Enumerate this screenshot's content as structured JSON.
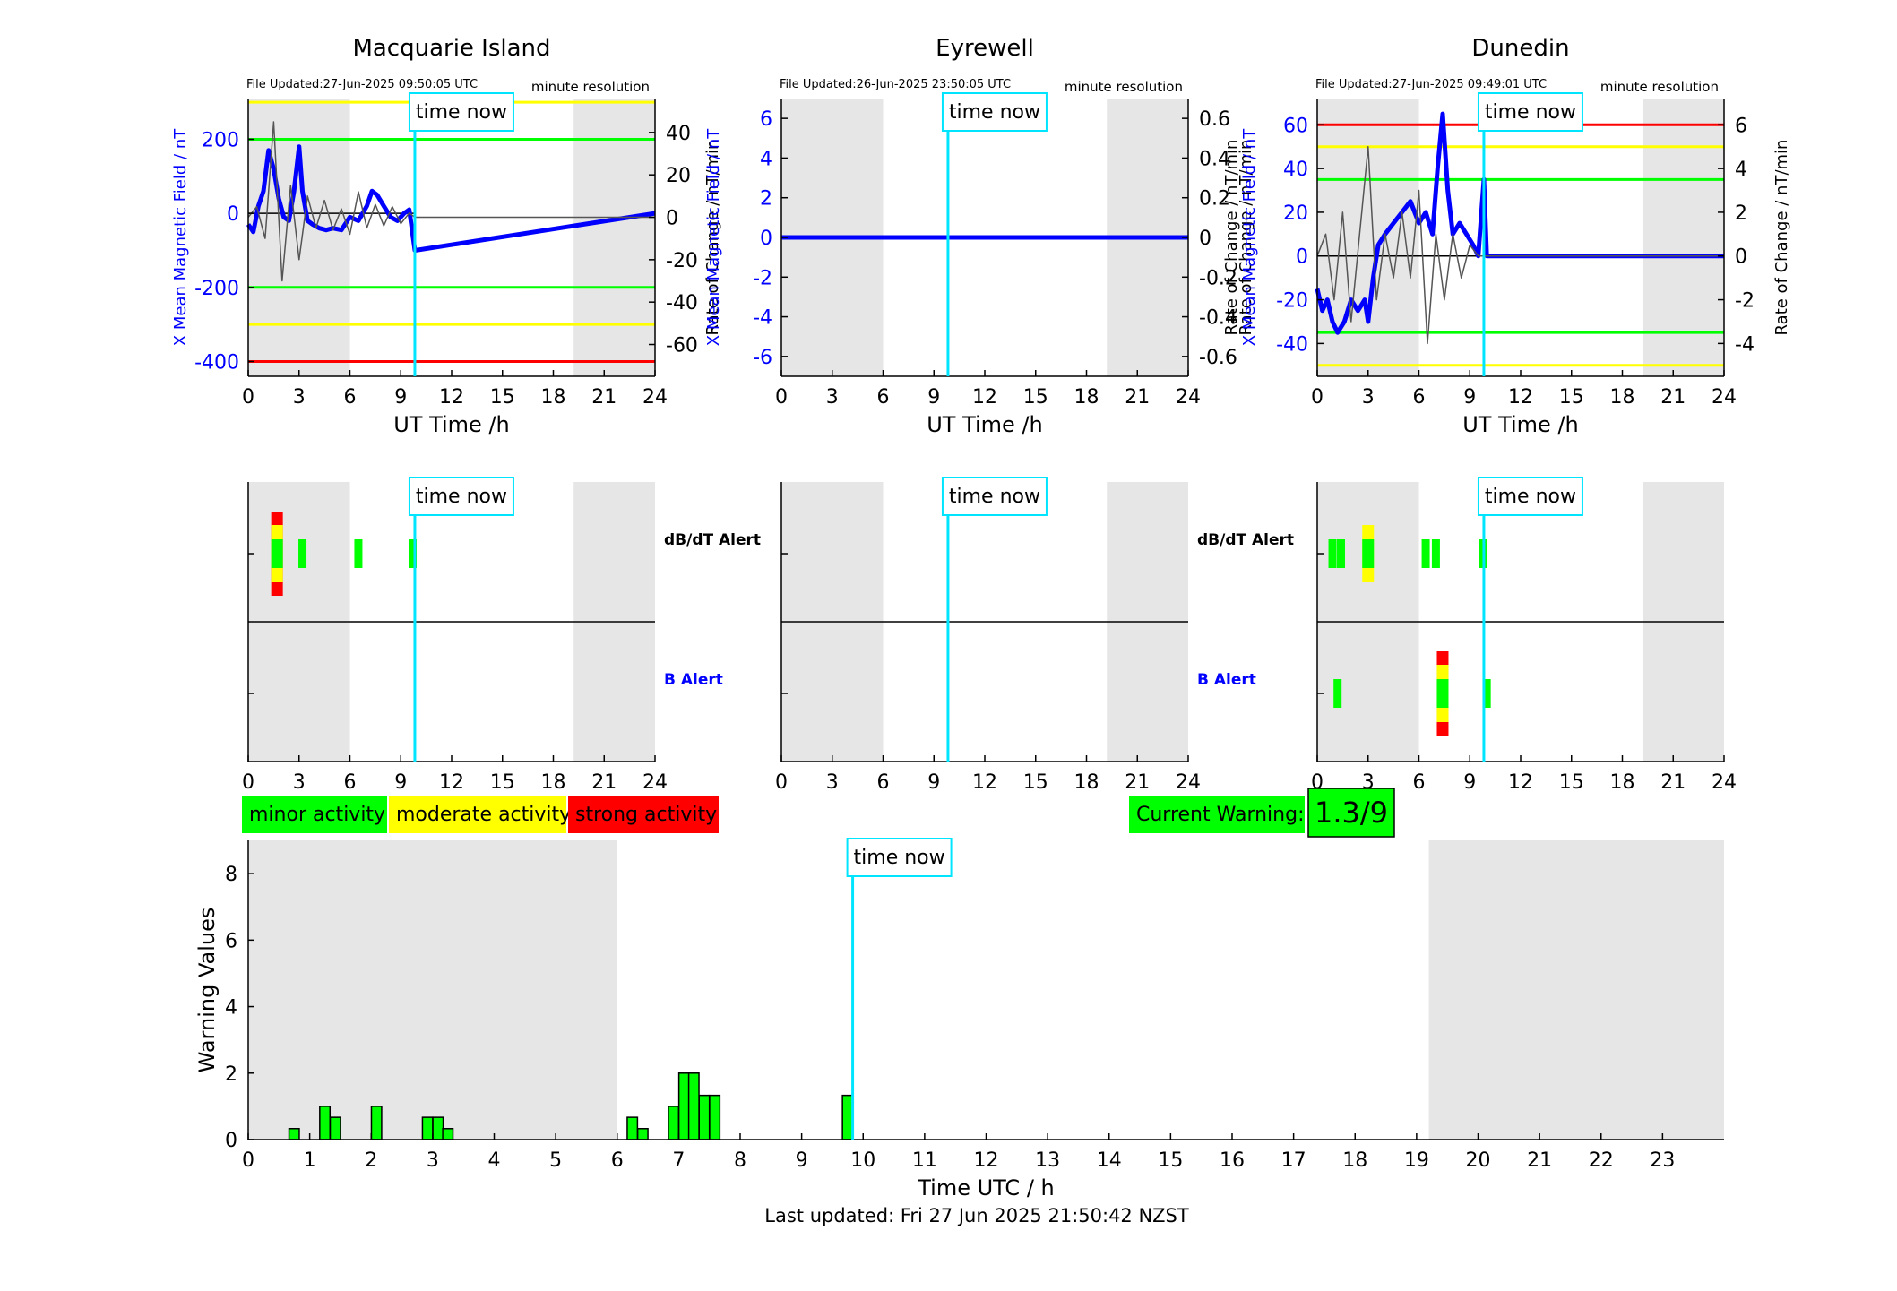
{
  "stations": [
    {
      "name": "Macquarie Island",
      "file_updated": "File Updated:27-Jun-2025 09:50:05 UTC"
    },
    {
      "name": "Eyrewell",
      "file_updated": "File Updated:26-Jun-2025 23:50:05 UTC"
    },
    {
      "name": "Dunedin",
      "file_updated": "File Updated:27-Jun-2025 09:49:01 UTC"
    }
  ],
  "labels": {
    "resolution": "minute resolution",
    "time_now": "time now",
    "ut_time_axis": "UT Time /h",
    "left_axis": "X Mean Magnetic Field / nT",
    "right_axis": "Rate of Change / nT/min",
    "dbdt_alert": "dB/dT Alert",
    "b_alert": "B Alert",
    "warning_axis": "Warning Values",
    "warning_time_axis": "Time UTC / h",
    "last_updated": "Last updated: Fri 27 Jun 2025 21:50:42 NZST"
  },
  "legend": [
    {
      "label": "minor activity",
      "color": "#00ff00"
    },
    {
      "label": "moderate activity",
      "color": "#ffff00"
    },
    {
      "label": "strong activity",
      "color": "#ff0000"
    }
  ],
  "current_warning": {
    "label": "Current Warning:",
    "value": "1.3/9",
    "color": "#00ff00"
  },
  "colors": {
    "field_line": "#0000ff",
    "rate_line": "#555555",
    "time_now": "#00e5ff",
    "shade": "#e6e6e6",
    "red": "#ff0000",
    "yellow": "#ffff00",
    "green": "#00ff00"
  },
  "chart_data": [
    {
      "type": "line",
      "station": "Macquarie Island",
      "x_ticks": [
        0,
        3,
        6,
        9,
        12,
        15,
        18,
        21,
        24
      ],
      "xlim": [
        0,
        24
      ],
      "left_ylim": [
        -440,
        310
      ],
      "left_ticks": [
        -400,
        -200,
        0,
        200
      ],
      "right_ylim": [
        -75,
        56
      ],
      "right_ticks": [
        -60,
        -40,
        -20,
        0,
        20,
        40
      ],
      "time_now": 9.83,
      "shaded_hours": [
        [
          0,
          6
        ],
        [
          19.2,
          24
        ]
      ],
      "threshold_lines": [
        {
          "value": 300,
          "color": "yellow"
        },
        {
          "value": 200,
          "color": "green"
        },
        {
          "value": -200,
          "color": "green"
        },
        {
          "value": -300,
          "color": "yellow"
        },
        {
          "value": -400,
          "color": "red"
        }
      ],
      "series": [
        {
          "name": "X Mean Magnetic Field / nT",
          "axis": "left",
          "x": [
            0,
            0.3,
            0.6,
            0.9,
            1.2,
            1.5,
            1.8,
            2.1,
            2.4,
            2.7,
            3.0,
            3.2,
            3.5,
            3.8,
            4.2,
            4.6,
            5.0,
            5.5,
            6.0,
            6.5,
            7.0,
            7.3,
            7.6,
            8.0,
            8.4,
            8.8,
            9.2,
            9.5,
            9.83,
            24
          ],
          "y": [
            -30,
            -50,
            20,
            60,
            170,
            120,
            40,
            -10,
            -20,
            60,
            180,
            60,
            -20,
            -30,
            -40,
            -45,
            -40,
            -45,
            -10,
            -20,
            20,
            60,
            50,
            20,
            -10,
            -20,
            0,
            10,
            -100,
            0
          ]
        },
        {
          "name": "Rate of Change / nT/min",
          "axis": "right",
          "x": [
            0,
            0.5,
            1.0,
            1.5,
            2.0,
            2.5,
            3.0,
            3.5,
            4.0,
            4.5,
            5.0,
            5.5,
            6.0,
            6.5,
            7.0,
            7.5,
            8.0,
            8.5,
            9.0,
            9.5,
            9.83,
            24
          ],
          "y": [
            0,
            5,
            -10,
            45,
            -30,
            15,
            -20,
            10,
            -5,
            8,
            -6,
            4,
            -8,
            12,
            -5,
            6,
            -4,
            5,
            -3,
            2,
            0,
            0
          ]
        }
      ]
    },
    {
      "type": "line",
      "station": "Eyrewell",
      "x_ticks": [
        0,
        3,
        6,
        9,
        12,
        15,
        18,
        21,
        24
      ],
      "xlim": [
        0,
        24
      ],
      "left_ylim": [
        -7,
        7
      ],
      "left_ticks": [
        -6,
        -4,
        -2,
        0,
        2,
        4,
        6
      ],
      "right_ylim": [
        -0.7,
        0.7
      ],
      "right_ticks": [
        -0.6,
        -0.4,
        -0.2,
        0,
        0.2,
        0.4,
        0.6
      ],
      "time_now": 9.83,
      "shaded_hours": [
        [
          0,
          6
        ],
        [
          19.2,
          24
        ]
      ],
      "threshold_lines": [],
      "series": [
        {
          "name": "X Mean Magnetic Field / nT",
          "axis": "left",
          "x": [
            0,
            24
          ],
          "y": [
            0,
            0
          ]
        }
      ]
    },
    {
      "type": "line",
      "station": "Dunedin",
      "x_ticks": [
        0,
        3,
        6,
        9,
        12,
        15,
        18,
        21,
        24
      ],
      "xlim": [
        0,
        24
      ],
      "left_ylim": [
        -55,
        72
      ],
      "left_ticks": [
        -40,
        -20,
        0,
        20,
        40,
        60
      ],
      "right_ylim": [
        -5.5,
        7.2
      ],
      "right_ticks": [
        -4,
        -2,
        0,
        2,
        4,
        6
      ],
      "time_now": 9.83,
      "shaded_hours": [
        [
          0,
          6
        ],
        [
          19.2,
          24
        ]
      ],
      "threshold_lines": [
        {
          "value": 60,
          "color": "red"
        },
        {
          "value": 50,
          "color": "yellow"
        },
        {
          "value": 35,
          "color": "green"
        },
        {
          "value": -35,
          "color": "green"
        },
        {
          "value": -50,
          "color": "yellow"
        }
      ],
      "series": [
        {
          "name": "X Mean Magnetic Field / nT",
          "axis": "left",
          "x": [
            0,
            0.3,
            0.6,
            0.9,
            1.2,
            1.6,
            2.0,
            2.4,
            2.8,
            3.0,
            3.3,
            3.6,
            4.0,
            4.5,
            5.0,
            5.5,
            6.0,
            6.4,
            6.8,
            7.1,
            7.4,
            7.7,
            8.0,
            8.4,
            8.8,
            9.2,
            9.5,
            9.83,
            10,
            24
          ],
          "y": [
            -15,
            -25,
            -20,
            -30,
            -35,
            -30,
            -20,
            -25,
            -20,
            -30,
            -10,
            5,
            10,
            15,
            20,
            25,
            15,
            20,
            10,
            40,
            65,
            30,
            10,
            15,
            10,
            5,
            0,
            35,
            0,
            0
          ]
        },
        {
          "name": "Rate of Change / nT/min",
          "axis": "right",
          "x": [
            0,
            0.5,
            1.0,
            1.5,
            2.0,
            2.5,
            3.0,
            3.5,
            4.0,
            4.5,
            5.0,
            5.5,
            6.0,
            6.5,
            7.0,
            7.5,
            8.0,
            8.5,
            9.0,
            9.5,
            9.83,
            24
          ],
          "y": [
            0,
            1,
            -2,
            2,
            -3,
            1,
            5,
            -2,
            1,
            -1,
            2,
            -1,
            3,
            -4,
            1,
            -2,
            1,
            -1,
            0.5,
            0,
            0,
            0
          ]
        }
      ]
    },
    {
      "type": "bar",
      "title": "Warning Values",
      "x_ticks": [
        0,
        1,
        2,
        3,
        4,
        5,
        6,
        7,
        8,
        9,
        10,
        11,
        12,
        13,
        14,
        15,
        16,
        17,
        18,
        19,
        20,
        21,
        22,
        23
      ],
      "xlim": [
        0,
        24
      ],
      "ylim": [
        0,
        9
      ],
      "y_ticks": [
        0,
        2,
        4,
        6,
        8
      ],
      "time_now": 9.83,
      "shaded_hours": [
        [
          0,
          6
        ],
        [
          19.2,
          24
        ]
      ],
      "x": [
        0.83,
        1.0,
        1.33,
        1.5,
        2.17,
        2.33,
        2.5,
        3.0,
        3.17,
        3.33,
        6.33,
        6.5,
        7.0,
        7.17,
        7.33,
        7.5,
        7.67,
        9.83
      ],
      "values": [
        0.33,
        0.0,
        1.0,
        0.67,
        1.0,
        0.0,
        0.0,
        0.67,
        0.67,
        0.33,
        0.67,
        0.33,
        1.0,
        2.0,
        2.0,
        1.33,
        1.33,
        1.33
      ]
    }
  ],
  "alerts": [
    {
      "station": "Macquarie Island",
      "dbdt": [
        {
          "hour": 1.7,
          "level": "strong"
        },
        {
          "hour": 3.2,
          "level": "minor"
        },
        {
          "hour": 6.5,
          "level": "minor"
        },
        {
          "hour": 9.7,
          "level": "minor"
        }
      ],
      "b": []
    },
    {
      "station": "Eyrewell",
      "dbdt": [],
      "b": []
    },
    {
      "station": "Dunedin",
      "dbdt": [
        {
          "hour": 0.9,
          "level": "minor"
        },
        {
          "hour": 1.4,
          "level": "minor"
        },
        {
          "hour": 3.0,
          "level": "moderate"
        },
        {
          "hour": 6.4,
          "level": "minor"
        },
        {
          "hour": 7.0,
          "level": "minor"
        },
        {
          "hour": 9.8,
          "level": "minor"
        }
      ],
      "b": [
        {
          "hour": 1.2,
          "level": "minor"
        },
        {
          "hour": 7.4,
          "level": "strong"
        },
        {
          "hour": 10.0,
          "level": "minor"
        }
      ]
    }
  ]
}
